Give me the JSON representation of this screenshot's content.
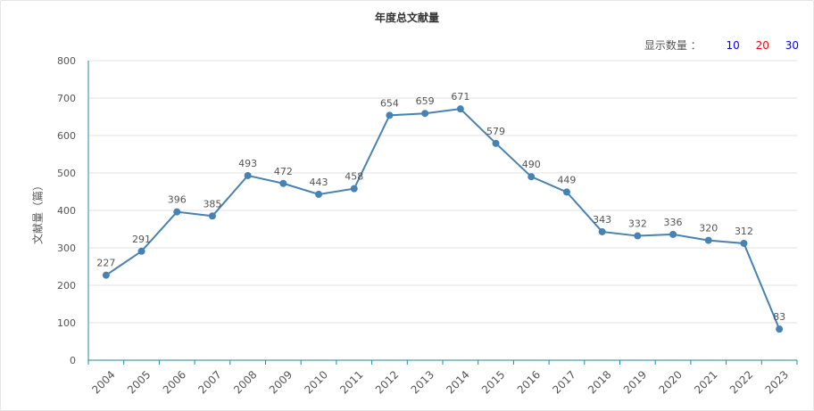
{
  "title": "年度总文献量",
  "display_count": {
    "label": "显示数量 ：",
    "options": [
      {
        "label": "10",
        "color": "#0000ff"
      },
      {
        "label": "20",
        "color": "#ff0000"
      },
      {
        "label": "30",
        "color": "#0000ff"
      }
    ]
  },
  "chart_data": {
    "type": "line",
    "title": "年度总文献量",
    "xlabel": "",
    "ylabel": "文献量（篇）",
    "ylim": [
      0,
      800
    ],
    "yticks": [
      0,
      100,
      200,
      300,
      400,
      500,
      600,
      700,
      800
    ],
    "grid": true,
    "categories": [
      "2004",
      "2005",
      "2006",
      "2007",
      "2008",
      "2009",
      "2010",
      "2011",
      "2012",
      "2013",
      "2014",
      "2015",
      "2016",
      "2017",
      "2018",
      "2019",
      "2020",
      "2021",
      "2022",
      "2023"
    ],
    "series": [
      {
        "values": [
          227,
          291,
          396,
          385,
          493,
          472,
          443,
          458,
          654,
          659,
          671,
          579,
          490,
          449,
          343,
          332,
          336,
          320,
          312,
          83
        ],
        "color": "#4682b4"
      }
    ]
  }
}
